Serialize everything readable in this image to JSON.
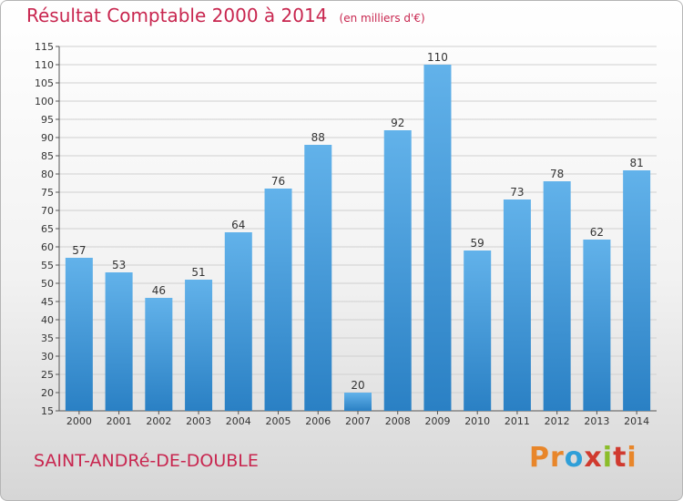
{
  "header": {
    "title": "Résultat Comptable 2000 à 2014",
    "unit": "(en milliers d'€)"
  },
  "footer": {
    "commune": "SAINT-ANDRé-DE-DOUBLE",
    "brand": "Proxiti",
    "brand_colors": [
      "#e8862a",
      "#e8862a",
      "#2f9fd8",
      "#d03a2f",
      "#8bbd2a",
      "#d03a2f",
      "#e8862a"
    ]
  },
  "colors": {
    "title": "#c8264f",
    "bar_top": "#62b2ea",
    "bar_bottom": "#2a80c4",
    "grid": "#d0d0d0",
    "axis": "#555555"
  },
  "chart_data": {
    "type": "bar",
    "title": "Résultat Comptable 2000 à 2014",
    "xlabel": "",
    "ylabel": "",
    "categories": [
      "2000",
      "2001",
      "2002",
      "2003",
      "2004",
      "2005",
      "2006",
      "2007",
      "2008",
      "2009",
      "2010",
      "2011",
      "2012",
      "2013",
      "2014"
    ],
    "values": [
      57,
      53,
      46,
      51,
      64,
      76,
      88,
      20,
      92,
      110,
      59,
      73,
      78,
      62,
      81
    ],
    "ylim": [
      15,
      115
    ],
    "yticks": [
      15,
      20,
      25,
      30,
      35,
      40,
      45,
      50,
      55,
      60,
      65,
      70,
      75,
      80,
      85,
      90,
      95,
      100,
      105,
      110,
      115
    ],
    "grid": true,
    "legend": "none"
  }
}
